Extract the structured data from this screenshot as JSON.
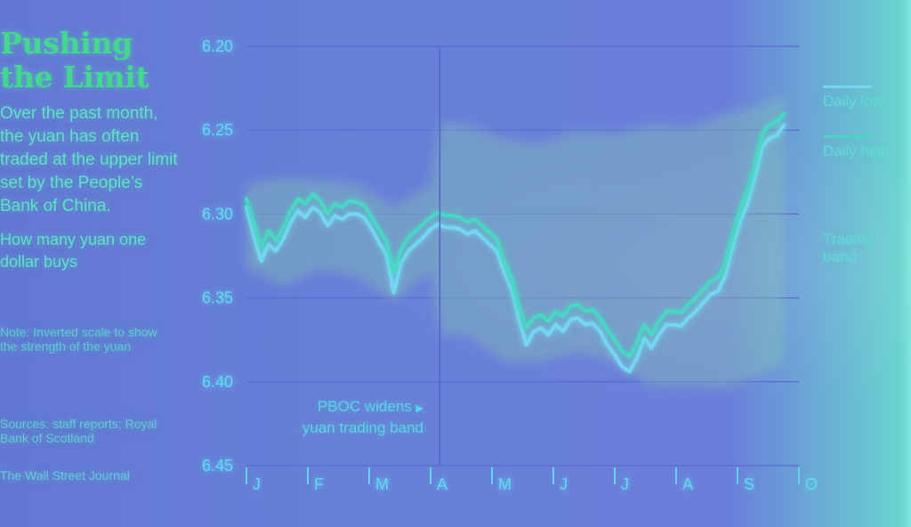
{
  "sidebar": {
    "title_line1": "Pushing",
    "title_line2": "the Limit",
    "description": "Over the past month, the yuan has often traded at the upper limit set by the People’s Bank of China.",
    "subtitle": "How many yuan one dollar buys",
    "note": "Note: Inverted scale to show the strength of the yuan",
    "sources": "Sources: staff reports; Royal Bank of Scotland",
    "credit": "The Wall Street Journal"
  },
  "chart_data": {
    "type": "line",
    "title": "Pushing the Limit",
    "subtitle": "How many yuan one dollar buys",
    "y_axis": {
      "min": 6.2,
      "max": 6.45,
      "inverted": true,
      "ticks": [
        "6.20",
        "6.25",
        "6.30",
        "6.35",
        "6.40",
        "6.45"
      ]
    },
    "x_axis": {
      "ticks": [
        "J",
        "F",
        "M",
        "A",
        "M",
        "J",
        "J",
        "A",
        "S",
        "O"
      ]
    },
    "grid": true,
    "legend_placement": "right",
    "annotations": {
      "event_line_label_1": "PBOC widens",
      "event_line_label_2": "yuan trading band",
      "event_position_month_index": 3.15
    },
    "series": [
      {
        "name": "Daily low",
        "color": "#72d7ef",
        "points": [
          [
            0.0,
            6.296
          ],
          [
            0.12,
            6.313
          ],
          [
            0.24,
            6.328
          ],
          [
            0.36,
            6.318
          ],
          [
            0.48,
            6.322
          ],
          [
            0.6,
            6.315
          ],
          [
            0.72,
            6.305
          ],
          [
            0.84,
            6.298
          ],
          [
            0.96,
            6.302
          ],
          [
            1.08,
            6.296
          ],
          [
            1.2,
            6.299
          ],
          [
            1.32,
            6.307
          ],
          [
            1.44,
            6.301
          ],
          [
            1.56,
            6.303
          ],
          [
            1.68,
            6.3
          ],
          [
            1.8,
            6.3
          ],
          [
            1.92,
            6.302
          ],
          [
            2.04,
            6.309
          ],
          [
            2.16,
            6.317
          ],
          [
            2.28,
            6.324
          ],
          [
            2.4,
            6.347
          ],
          [
            2.52,
            6.329
          ],
          [
            2.64,
            6.322
          ],
          [
            2.76,
            6.318
          ],
          [
            2.88,
            6.314
          ],
          [
            3.0,
            6.309
          ],
          [
            3.12,
            6.306
          ],
          [
            3.24,
            6.308
          ],
          [
            3.36,
            6.308
          ],
          [
            3.48,
            6.309
          ],
          [
            3.6,
            6.312
          ],
          [
            3.72,
            6.31
          ],
          [
            3.84,
            6.314
          ],
          [
            3.96,
            6.318
          ],
          [
            4.08,
            6.322
          ],
          [
            4.2,
            6.335
          ],
          [
            4.32,
            6.345
          ],
          [
            4.44,
            6.363
          ],
          [
            4.56,
            6.378
          ],
          [
            4.68,
            6.37
          ],
          [
            4.8,
            6.368
          ],
          [
            4.92,
            6.372
          ],
          [
            5.04,
            6.366
          ],
          [
            5.16,
            6.37
          ],
          [
            5.28,
            6.363
          ],
          [
            5.4,
            6.362
          ],
          [
            5.52,
            6.366
          ],
          [
            5.64,
            6.365
          ],
          [
            5.76,
            6.37
          ],
          [
            5.88,
            6.378
          ],
          [
            6.0,
            6.384
          ],
          [
            6.12,
            6.391
          ],
          [
            6.24,
            6.394
          ],
          [
            6.36,
            6.386
          ],
          [
            6.48,
            6.374
          ],
          [
            6.6,
            6.38
          ],
          [
            6.72,
            6.372
          ],
          [
            6.84,
            6.366
          ],
          [
            6.96,
            6.366
          ],
          [
            7.08,
            6.367
          ],
          [
            7.2,
            6.362
          ],
          [
            7.32,
            6.358
          ],
          [
            7.44,
            6.353
          ],
          [
            7.56,
            6.348
          ],
          [
            7.68,
            6.346
          ],
          [
            7.8,
            6.337
          ],
          [
            7.92,
            6.32
          ],
          [
            8.04,
            6.305
          ],
          [
            8.16,
            6.294
          ],
          [
            8.28,
            6.279
          ],
          [
            8.4,
            6.26
          ],
          [
            8.52,
            6.255
          ],
          [
            8.64,
            6.253
          ],
          [
            8.76,
            6.247
          ]
        ]
      },
      {
        "name": "Daily high",
        "color": "#49d6c2",
        "points": [
          [
            0.0,
            6.291
          ],
          [
            0.12,
            6.305
          ],
          [
            0.24,
            6.32
          ],
          [
            0.36,
            6.31
          ],
          [
            0.48,
            6.316
          ],
          [
            0.6,
            6.308
          ],
          [
            0.72,
            6.298
          ],
          [
            0.84,
            6.291
          ],
          [
            0.96,
            6.294
          ],
          [
            1.08,
            6.288
          ],
          [
            1.2,
            6.292
          ],
          [
            1.32,
            6.3
          ],
          [
            1.44,
            6.294
          ],
          [
            1.56,
            6.296
          ],
          [
            1.68,
            6.292
          ],
          [
            1.8,
            6.293
          ],
          [
            1.92,
            6.295
          ],
          [
            2.04,
            6.302
          ],
          [
            2.16,
            6.309
          ],
          [
            2.28,
            6.316
          ],
          [
            2.4,
            6.335
          ],
          [
            2.52,
            6.321
          ],
          [
            2.64,
            6.314
          ],
          [
            2.76,
            6.31
          ],
          [
            2.88,
            6.306
          ],
          [
            3.0,
            6.302
          ],
          [
            3.12,
            6.299
          ],
          [
            3.24,
            6.301
          ],
          [
            3.36,
            6.301
          ],
          [
            3.48,
            6.302
          ],
          [
            3.6,
            6.305
          ],
          [
            3.72,
            6.303
          ],
          [
            3.84,
            6.307
          ],
          [
            3.96,
            6.311
          ],
          [
            4.08,
            6.315
          ],
          [
            4.2,
            6.328
          ],
          [
            4.32,
            6.338
          ],
          [
            4.44,
            6.355
          ],
          [
            4.56,
            6.368
          ],
          [
            4.68,
            6.362
          ],
          [
            4.8,
            6.36
          ],
          [
            4.92,
            6.364
          ],
          [
            5.04,
            6.358
          ],
          [
            5.16,
            6.361
          ],
          [
            5.28,
            6.355
          ],
          [
            5.4,
            6.354
          ],
          [
            5.52,
            6.358
          ],
          [
            5.64,
            6.357
          ],
          [
            5.76,
            6.362
          ],
          [
            5.88,
            6.369
          ],
          [
            6.0,
            6.375
          ],
          [
            6.12,
            6.382
          ],
          [
            6.24,
            6.385
          ],
          [
            6.36,
            6.377
          ],
          [
            6.48,
            6.366
          ],
          [
            6.6,
            6.372
          ],
          [
            6.72,
            6.364
          ],
          [
            6.84,
            6.358
          ],
          [
            6.96,
            6.358
          ],
          [
            7.08,
            6.359
          ],
          [
            7.2,
            6.354
          ],
          [
            7.32,
            6.35
          ],
          [
            7.44,
            6.345
          ],
          [
            7.56,
            6.34
          ],
          [
            7.68,
            6.338
          ],
          [
            7.8,
            6.329
          ],
          [
            7.92,
            6.312
          ],
          [
            8.04,
            6.297
          ],
          [
            8.16,
            6.286
          ],
          [
            8.28,
            6.271
          ],
          [
            8.4,
            6.252
          ],
          [
            8.52,
            6.247
          ],
          [
            8.64,
            6.245
          ],
          [
            8.76,
            6.24
          ]
        ]
      },
      {
        "name": "Trading band",
        "color": "#7edf9e",
        "band": [
          [
            0.0,
            6.282,
            6.332
          ],
          [
            0.6,
            6.279,
            6.343
          ],
          [
            1.2,
            6.28,
            6.333
          ],
          [
            1.8,
            6.282,
            6.337
          ],
          [
            2.4,
            6.296,
            6.352
          ],
          [
            3.0,
            6.282,
            6.334
          ],
          [
            3.15,
            6.245,
            6.372
          ],
          [
            3.6,
            6.247,
            6.372
          ],
          [
            4.2,
            6.255,
            6.388
          ],
          [
            4.8,
            6.258,
            6.388
          ],
          [
            5.4,
            6.25,
            6.382
          ],
          [
            6.0,
            6.252,
            6.388
          ],
          [
            6.6,
            6.247,
            6.403
          ],
          [
            7.2,
            6.248,
            6.402
          ],
          [
            7.8,
            6.24,
            6.404
          ],
          [
            8.4,
            6.235,
            6.396
          ],
          [
            8.76,
            6.23,
            6.388
          ]
        ]
      }
    ]
  },
  "legend": {
    "daily_low": "Daily low",
    "daily_high": "Daily high",
    "trading_band_1": "Trading",
    "trading_band_2": "band"
  },
  "colors": {
    "background": "#6a7fda",
    "title": "#42d98b",
    "text": "#5ce3c2",
    "axis": "#4a60bf",
    "grid": "#5b6fd0",
    "annotation": "#58d3ed"
  }
}
